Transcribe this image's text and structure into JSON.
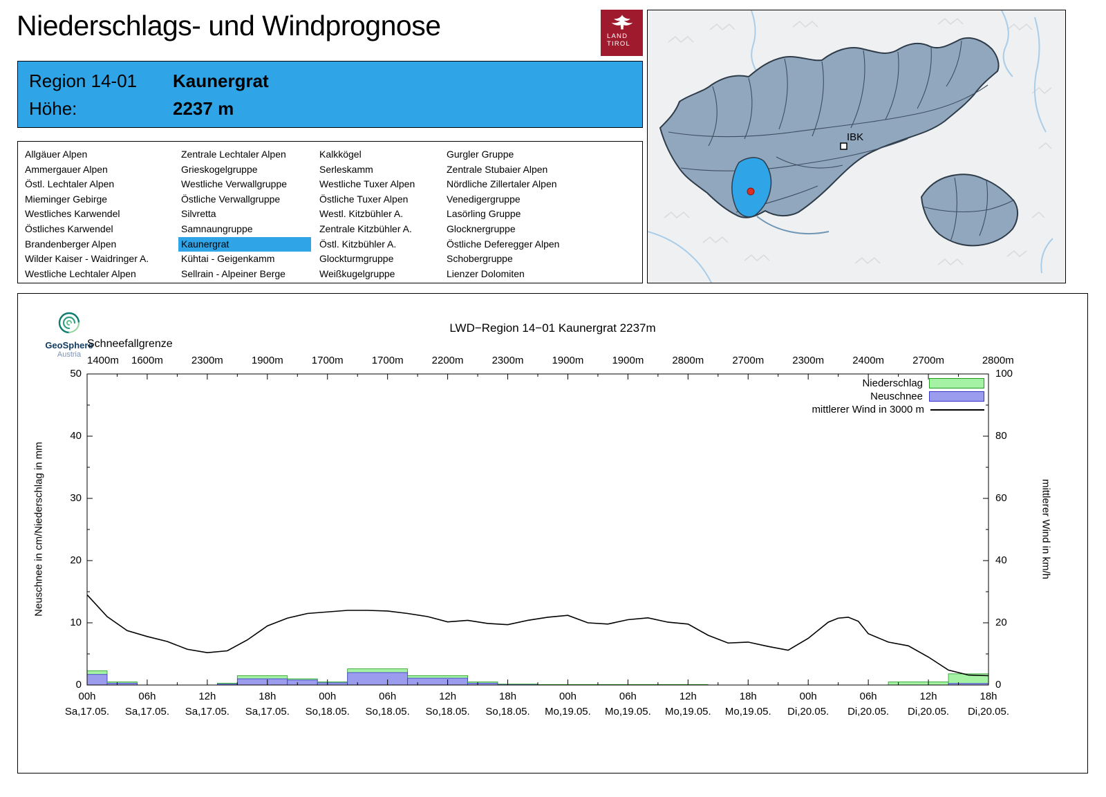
{
  "header": {
    "title": "Niederschlags- und Windprognose"
  },
  "land_tirol_logo": {
    "line1": "LAND",
    "line2": "TIROL"
  },
  "region_info": {
    "region_label": "Region 14-01",
    "region_name": "Kaunergrat",
    "altitude_label": "Höhe:",
    "altitude_value": "2237 m"
  },
  "map": {
    "marker_label": "IBK"
  },
  "colors": {
    "accent_blue": "#2fa4e7",
    "logo_red": "#a01a2d",
    "map_region_fill": "#90a7bd"
  },
  "region_list": {
    "selected_item": "Kaunergrat",
    "columns": [
      [
        "Allgäuer Alpen",
        "Ammergauer Alpen",
        "Östl. Lechtaler Alpen",
        "Mieminger Gebirge",
        "Westliches Karwendel",
        "Östliches Karwendel",
        "Brandenberger Alpen",
        "Wilder Kaiser - Waidringer A.",
        "Westliche Lechtaler Alpen"
      ],
      [
        "Zentrale Lechtaler Alpen",
        "Grieskogelgruppe",
        "Westliche Verwallgruppe",
        "Östliche Verwallgruppe",
        "Silvretta",
        "Samnaungruppe",
        "Kaunergrat",
        "Kühtai - Geigenkamm",
        "Sellrain - Alpeiner Berge"
      ],
      [
        "Kalkkögel",
        "Serleskamm",
        "Westliche Tuxer Alpen",
        "Östliche Tuxer Alpen",
        "Westl. Kitzbühler A.",
        "Zentrale Kitzbühler A.",
        "Östl. Kitzbühler A.",
        "Glockturmgruppe",
        "Weißkugelgruppe"
      ],
      [
        "Gurgler Gruppe",
        "Zentrale Stubaier Alpen",
        "Nördliche Zillertaler Alpen",
        "Venedigergruppe",
        "Lasörling Gruppe",
        "Glocknergruppe",
        "Östliche Deferegger Alpen",
        "Schobergruppe",
        "Lienzer Dolomiten"
      ]
    ]
  },
  "geosphere_logo": {
    "name": "GeoSphere",
    "subname": "Austria"
  },
  "chart_data": {
    "type": "composite",
    "title": "LWD−Region 14−01 Kaunergrat 2237m",
    "snowline": {
      "label": "Schneefallgrenze",
      "values": [
        "1400m",
        "1600m",
        "2300m",
        "1900m",
        "1700m",
        "1700m",
        "2200m",
        "2300m",
        "1900m",
        "1900m",
        "2800m",
        "2700m",
        "2300m",
        "2400m",
        "2700m",
        "2800m"
      ]
    },
    "ylabel_left": "Neuschnee in cm/Niederschlag in mm",
    "ylabel_right": "mittlerer Wind in km/h",
    "ylim_left": [
      0,
      50
    ],
    "ylim_right": [
      0,
      100
    ],
    "left_ticks": [
      0,
      10,
      20,
      30,
      40,
      50
    ],
    "right_ticks": [
      0,
      20,
      40,
      60,
      80,
      100
    ],
    "grid": false,
    "x_hours_range": [
      0,
      90
    ],
    "x_ticks": [
      {
        "time": "00h",
        "date": "Sa,17.05."
      },
      {
        "time": "06h",
        "date": "Sa,17.05."
      },
      {
        "time": "12h",
        "date": "Sa,17.05."
      },
      {
        "time": "18h",
        "date": "Sa,17.05."
      },
      {
        "time": "00h",
        "date": "So,18.05."
      },
      {
        "time": "06h",
        "date": "So,18.05."
      },
      {
        "time": "12h",
        "date": "So,18.05."
      },
      {
        "time": "18h",
        "date": "So,18.05."
      },
      {
        "time": "00h",
        "date": "Mo,19.05."
      },
      {
        "time": "06h",
        "date": "Mo,19.05."
      },
      {
        "time": "12h",
        "date": "Mo,19.05."
      },
      {
        "time": "18h",
        "date": "Mo,19.05."
      },
      {
        "time": "00h",
        "date": "Di,20.05."
      },
      {
        "time": "06h",
        "date": "Di,20.05."
      },
      {
        "time": "12h",
        "date": "Di,20.05."
      },
      {
        "time": "18h",
        "date": "Di,20.05."
      }
    ],
    "legend": [
      {
        "label": "Niederschlag",
        "type": "box",
        "fill": "#a5f2a5",
        "stroke": "#1f9c1f"
      },
      {
        "label": "Neuschnee",
        "type": "box",
        "fill": "#9c9cee",
        "stroke": "#3636c8"
      },
      {
        "label": "mittlerer Wind in 3000 m",
        "type": "line",
        "stroke": "#000000"
      }
    ],
    "bars": [
      {
        "from_h": 0,
        "to_h": 2,
        "niederschlag_mm": 2.3,
        "neuschnee_cm": 1.7
      },
      {
        "from_h": 2,
        "to_h": 5,
        "niederschlag_mm": 0.5,
        "neuschnee_cm": 0.3
      },
      {
        "from_h": 13,
        "to_h": 15,
        "niederschlag_mm": 0.3,
        "neuschnee_cm": 0.15
      },
      {
        "from_h": 15,
        "to_h": 20,
        "niederschlag_mm": 1.5,
        "neuschnee_cm": 1.0
      },
      {
        "from_h": 20,
        "to_h": 23,
        "niederschlag_mm": 1.0,
        "neuschnee_cm": 0.8
      },
      {
        "from_h": 23,
        "to_h": 26,
        "niederschlag_mm": 0.5,
        "neuschnee_cm": 0.35
      },
      {
        "from_h": 26,
        "to_h": 32,
        "niederschlag_mm": 2.6,
        "neuschnee_cm": 2.0
      },
      {
        "from_h": 32,
        "to_h": 38,
        "niederschlag_mm": 1.5,
        "neuschnee_cm": 1.1
      },
      {
        "from_h": 38,
        "to_h": 41,
        "niederschlag_mm": 0.5,
        "neuschnee_cm": 0.3
      },
      {
        "from_h": 41,
        "to_h": 45,
        "niederschlag_mm": 0.15,
        "neuschnee_cm": 0.05
      },
      {
        "from_h": 45,
        "to_h": 62,
        "niederschlag_mm": 0.08,
        "neuschnee_cm": 0
      },
      {
        "from_h": 80,
        "to_h": 86,
        "niederschlag_mm": 0.5,
        "neuschnee_cm": 0
      },
      {
        "from_h": 86,
        "to_h": 90,
        "niederschlag_mm": 1.8,
        "neuschnee_cm": 0.25
      }
    ],
    "wind": {
      "x_hours": [
        0,
        2,
        4,
        6,
        8,
        10,
        12,
        14,
        16,
        18,
        20,
        22,
        24,
        26,
        28,
        30,
        32,
        34,
        36,
        38,
        40,
        42,
        44,
        46,
        48,
        50,
        52,
        54,
        56,
        58,
        60,
        62,
        64,
        66,
        68,
        70,
        72,
        74,
        75,
        76,
        77,
        78,
        80,
        82,
        84,
        86,
        88,
        90
      ],
      "kmh": [
        29,
        22,
        17.5,
        15.6,
        14,
        11.5,
        10.4,
        11,
        14.5,
        19,
        21.5,
        23,
        23.5,
        24,
        24,
        23.8,
        23,
        22,
        20.3,
        20.8,
        19.8,
        19.4,
        20.8,
        21.8,
        22.4,
        20,
        19.6,
        21,
        21.6,
        20.2,
        19.6,
        16,
        13.5,
        13.8,
        12.4,
        11.2,
        15,
        20.2,
        21.5,
        21.8,
        20.5,
        16.5,
        13.8,
        12.6,
        9,
        4.8,
        3.2,
        3
      ]
    }
  }
}
